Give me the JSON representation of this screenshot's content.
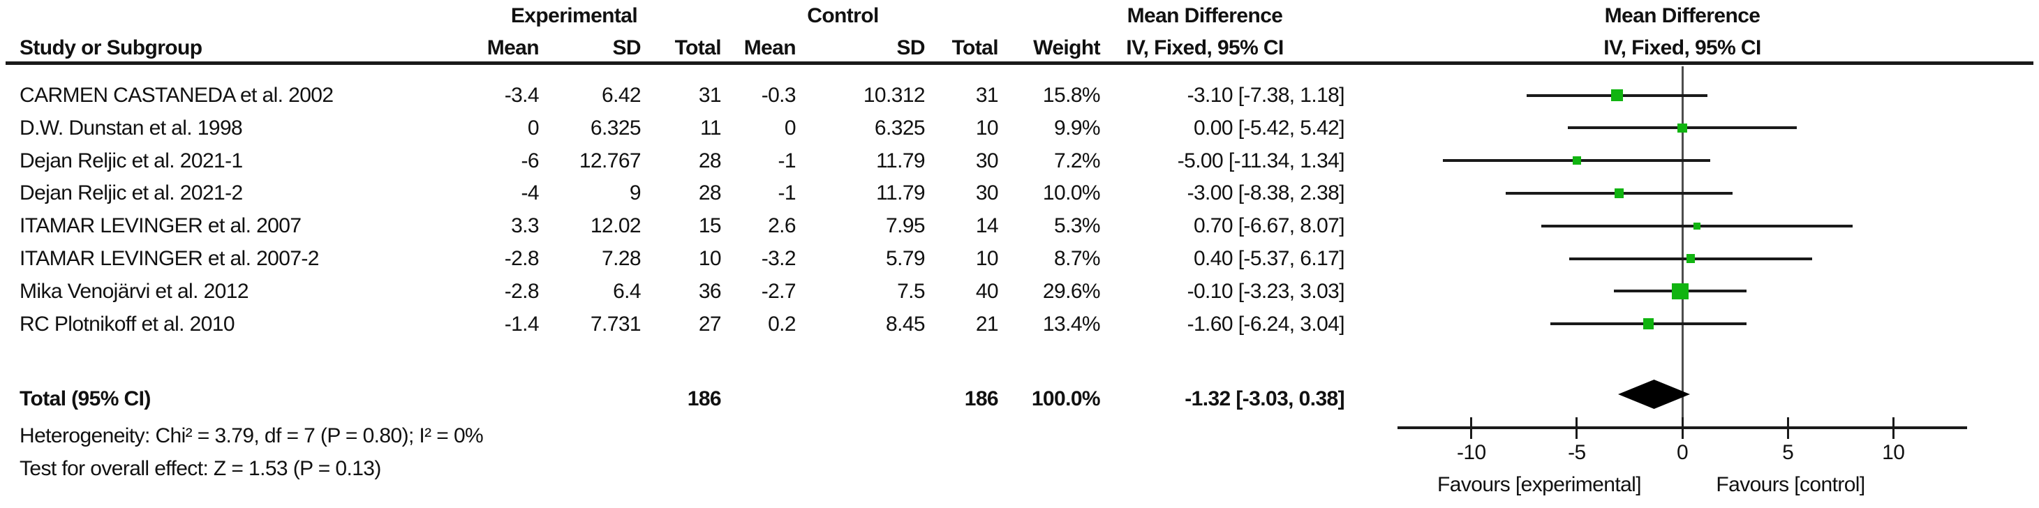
{
  "header": {
    "experimental": "Experimental",
    "control": "Control",
    "mean_difference": "Mean Difference",
    "study_or_subgroup": "Study or Subgroup",
    "mean": "Mean",
    "sd": "SD",
    "total": "Total",
    "weight": "Weight",
    "iv_fixed": "IV, Fixed, 95% CI"
  },
  "rows": [
    {
      "study": "CARMEN CASTANEDA et al. 2002",
      "mean_e": "-3.4",
      "sd_e": "6.42",
      "total_e": "31",
      "mean_c": "-0.3",
      "sd_c": "10.312",
      "total_c": "31",
      "weight": "15.8%",
      "ci": "-3.10 [-7.38, 1.18]"
    },
    {
      "study": "D.W. Dunstan et al. 1998",
      "mean_e": "0",
      "sd_e": "6.325",
      "total_e": "11",
      "mean_c": "0",
      "sd_c": "6.325",
      "total_c": "10",
      "weight": "9.9%",
      "ci": "0.00 [-5.42, 5.42]"
    },
    {
      "study": "Dejan Reljic et al. 2021-1",
      "mean_e": "-6",
      "sd_e": "12.767",
      "total_e": "28",
      "mean_c": "-1",
      "sd_c": "11.79",
      "total_c": "30",
      "weight": "7.2%",
      "ci": "-5.00 [-11.34, 1.34]"
    },
    {
      "study": "Dejan Reljic et al. 2021-2",
      "mean_e": "-4",
      "sd_e": "9",
      "total_e": "28",
      "mean_c": "-1",
      "sd_c": "11.79",
      "total_c": "30",
      "weight": "10.0%",
      "ci": "-3.00 [-8.38, 2.38]"
    },
    {
      "study": "ITAMAR LEVINGER et al. 2007",
      "mean_e": "3.3",
      "sd_e": "12.02",
      "total_e": "15",
      "mean_c": "2.6",
      "sd_c": "7.95",
      "total_c": "14",
      "weight": "5.3%",
      "ci": "0.70 [-6.67, 8.07]"
    },
    {
      "study": "ITAMAR LEVINGER et al. 2007-2",
      "mean_e": "-2.8",
      "sd_e": "7.28",
      "total_e": "10",
      "mean_c": "-3.2",
      "sd_c": "5.79",
      "total_c": "10",
      "weight": "8.7%",
      "ci": "0.40 [-5.37, 6.17]"
    },
    {
      "study": "Mika Venojärvi et al. 2012",
      "mean_e": "-2.8",
      "sd_e": "6.4",
      "total_e": "36",
      "mean_c": "-2.7",
      "sd_c": "7.5",
      "total_c": "40",
      "weight": "29.6%",
      "ci": "-0.10 [-3.23, 3.03]"
    },
    {
      "study": "RC Plotnikoff et al. 2010",
      "mean_e": "-1.4",
      "sd_e": "7.731",
      "total_e": "27",
      "mean_c": "0.2",
      "sd_c": "8.45",
      "total_c": "21",
      "weight": "13.4%",
      "ci": "-1.60 [-6.24, 3.04]"
    }
  ],
  "total_row": {
    "label": "Total (95% CI)",
    "total_e": "186",
    "total_c": "186",
    "weight": "100.0%",
    "ci": "-1.32 [-3.03, 0.38]"
  },
  "footer": {
    "heterogeneity": "Heterogeneity: Chi² = 3.79, df = 7 (P = 0.80); I² = 0%",
    "overall_effect": "Test for overall effect: Z = 1.53 (P = 0.13)"
  },
  "axis": {
    "tick_labels": [
      "-10",
      "-5",
      "0",
      "5",
      "10"
    ],
    "favours_left": "Favours [experimental]",
    "favours_right": "Favours [control]"
  },
  "colors": {
    "marker_green": "#11b411",
    "ci_line": "#1a1a1a",
    "zero_line": "#4d4d4d",
    "diamond": "#000000"
  },
  "chart_data": {
    "type": "forest",
    "title": "Mean Difference",
    "effect_measure": "IV, Fixed, 95% CI",
    "xlim": [
      -13.5,
      13.5
    ],
    "ticks": [
      -10,
      -5,
      0,
      5,
      10
    ],
    "xlabel_left": "Favours [experimental]",
    "xlabel_right": "Favours [control]",
    "studies": [
      {
        "name": "CARMEN CASTANEDA et al. 2002",
        "est": -3.1,
        "lo": -7.38,
        "hi": 1.18,
        "weight_pct": 15.8
      },
      {
        "name": "D.W. Dunstan et al. 1998",
        "est": 0.0,
        "lo": -5.42,
        "hi": 5.42,
        "weight_pct": 9.9
      },
      {
        "name": "Dejan Reljic et al. 2021-1",
        "est": -5.0,
        "lo": -11.34,
        "hi": 1.34,
        "weight_pct": 7.2
      },
      {
        "name": "Dejan Reljic et al. 2021-2",
        "est": -3.0,
        "lo": -8.38,
        "hi": 2.38,
        "weight_pct": 10.0
      },
      {
        "name": "ITAMAR LEVINGER et al. 2007",
        "est": 0.7,
        "lo": -6.67,
        "hi": 8.07,
        "weight_pct": 5.3
      },
      {
        "name": "ITAMAR LEVINGER et al. 2007-2",
        "est": 0.4,
        "lo": -5.37,
        "hi": 6.17,
        "weight_pct": 8.7
      },
      {
        "name": "Mika Venojärvi et al. 2012",
        "est": -0.1,
        "lo": -3.23,
        "hi": 3.03,
        "weight_pct": 29.6
      },
      {
        "name": "RC Plotnikoff et al. 2010",
        "est": -1.6,
        "lo": -6.24,
        "hi": 3.04,
        "weight_pct": 13.4
      }
    ],
    "total": {
      "est": -1.32,
      "lo": -3.03,
      "hi": 0.38,
      "n_experimental": 186,
      "n_control": 186,
      "weight_pct": 100.0
    },
    "heterogeneity": {
      "chi2": 3.79,
      "df": 7,
      "p": 0.8,
      "i2_pct": 0
    },
    "overall_effect": {
      "z": 1.53,
      "p": 0.13
    }
  }
}
